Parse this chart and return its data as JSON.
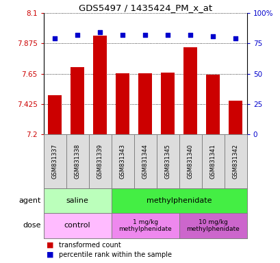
{
  "title": "GDS5497 / 1435424_PM_x_at",
  "samples": [
    "GSM831337",
    "GSM831338",
    "GSM831339",
    "GSM831343",
    "GSM831344",
    "GSM831345",
    "GSM831340",
    "GSM831341",
    "GSM831342"
  ],
  "bar_values": [
    7.49,
    7.7,
    7.935,
    7.655,
    7.655,
    7.66,
    7.845,
    7.645,
    7.45
  ],
  "percentile_values": [
    79,
    82,
    84,
    82,
    82,
    82,
    82,
    81,
    79
  ],
  "ylim_left": [
    7.2,
    8.1
  ],
  "yticks_left": [
    7.2,
    7.425,
    7.65,
    7.875,
    8.1
  ],
  "ytick_labels_left": [
    "7.2",
    "7.425",
    "7.65",
    "7.875",
    "8.1"
  ],
  "ylim_right": [
    0,
    100
  ],
  "yticks_right": [
    0,
    25,
    50,
    75,
    100
  ],
  "ytick_labels_right": [
    "0",
    "25",
    "50",
    "75",
    "100%"
  ],
  "bar_color": "#cc0000",
  "dot_color": "#0000cc",
  "left_tick_color": "#cc0000",
  "right_tick_color": "#0000cc",
  "grid_color": "#000000",
  "bar_width": 0.6,
  "agent_saline_label": "saline",
  "agent_methyl_label": "methylphenidate",
  "dose_control_label": "control",
  "dose_1mg_label": "1 mg/kg\nmethylphenidate",
  "dose_10mg_label": "10 mg/kg\nmethylphenidate",
  "agent_row_label": "agent",
  "dose_row_label": "dose",
  "saline_color": "#bbffbb",
  "methyl_color": "#44ee44",
  "dose_control_color": "#ffbbff",
  "dose_1mg_color": "#ee88ee",
  "dose_10mg_color": "#cc66cc",
  "legend_red_label": "transformed count",
  "legend_blue_label": "percentile rank within the sample"
}
